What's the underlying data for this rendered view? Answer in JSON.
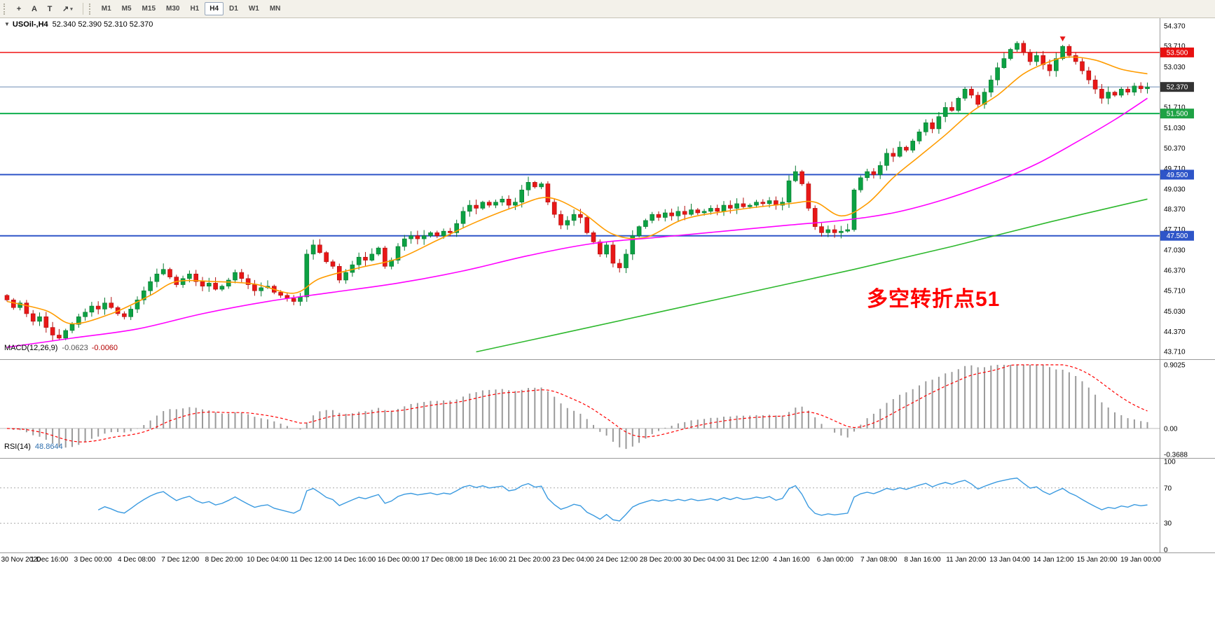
{
  "toolbar": {
    "tools": [
      {
        "id": "crosshair",
        "glyph": "+"
      },
      {
        "id": "text-annotation",
        "glyph": "A"
      },
      {
        "id": "text-label",
        "glyph": "T"
      },
      {
        "id": "arrow-objects",
        "glyph": "↗",
        "caret": "▾"
      }
    ],
    "timeframes": [
      "M1",
      "M5",
      "M15",
      "M30",
      "H1",
      "H4",
      "D1",
      "W1",
      "MN"
    ],
    "active_timeframe": "H4"
  },
  "chart_data": {
    "type": "candlestick",
    "symbol": "USOil-,H4",
    "collapse_icon": "▼",
    "ohlc_display": "52.340 52.390 52.310 52.370",
    "current_price": "52.370",
    "y_axis_labels": [
      "54.370",
      "53.710",
      "53.030",
      "52.370",
      "51.710",
      "51.030",
      "50.370",
      "49.710",
      "49.030",
      "48.370",
      "47.710",
      "47.030",
      "46.370",
      "45.710",
      "45.030",
      "44.370",
      "43.710"
    ],
    "horizontal_lines": [
      {
        "price": 53.5,
        "color": "#f01414",
        "width": 1.5,
        "badge": "53.500",
        "badge_bg": "#e81010"
      },
      {
        "price": 52.37,
        "color": "#6e8cb4",
        "width": 1,
        "badge": "52.370",
        "badge_bg": "#333333"
      },
      {
        "price": 51.5,
        "color": "#0faf4e",
        "width": 2,
        "badge": "51.500",
        "badge_bg": "#1ea244"
      },
      {
        "price": 49.5,
        "color": "#2e55c8",
        "width": 2,
        "badge": "49.500",
        "badge_bg": "#2e55c8"
      },
      {
        "price": 47.5,
        "color": "#2e55c8",
        "width": 2,
        "badge": "47.500",
        "badge_bg": "#2e55c8"
      }
    ],
    "candles": {
      "first_open": 45.55,
      "up_color": "#0ca143",
      "up_border": "#077a30",
      "down_color": "#e81717",
      "down_border": "#b00f0f",
      "closes": [
        45.4,
        45.15,
        45.3,
        44.95,
        44.7,
        44.85,
        44.5,
        44.25,
        44.15,
        44.4,
        44.6,
        44.85,
        45.0,
        45.2,
        45.1,
        45.3,
        45.15,
        44.95,
        44.85,
        45.1,
        45.4,
        45.7,
        46.0,
        46.25,
        46.4,
        46.15,
        45.9,
        46.1,
        46.25,
        46.0,
        45.85,
        45.95,
        45.75,
        45.85,
        46.05,
        46.3,
        46.1,
        45.9,
        45.7,
        45.8,
        45.85,
        45.65,
        45.55,
        45.45,
        45.35,
        45.5,
        46.9,
        47.2,
        46.95,
        46.65,
        46.5,
        46.05,
        46.3,
        46.55,
        46.8,
        46.7,
        46.9,
        47.1,
        46.5,
        46.7,
        47.15,
        47.4,
        47.5,
        47.4,
        47.5,
        47.6,
        47.5,
        47.65,
        47.6,
        47.9,
        48.3,
        48.5,
        48.4,
        48.6,
        48.5,
        48.6,
        48.7,
        48.5,
        48.6,
        49.0,
        49.25,
        49.1,
        49.2,
        48.6,
        48.2,
        47.85,
        48.0,
        48.2,
        48.1,
        47.6,
        47.3,
        46.9,
        47.2,
        46.6,
        46.45,
        46.9,
        47.5,
        47.8,
        48.0,
        48.2,
        48.1,
        48.25,
        48.15,
        48.3,
        48.2,
        48.35,
        48.25,
        48.3,
        48.4,
        48.3,
        48.5,
        48.4,
        48.55,
        48.45,
        48.5,
        48.6,
        48.55,
        48.65,
        48.5,
        48.6,
        49.3,
        49.6,
        49.2,
        48.4,
        47.8,
        47.6,
        47.7,
        47.6,
        47.65,
        47.7,
        49.0,
        49.4,
        49.6,
        49.5,
        49.8,
        50.2,
        50.1,
        50.4,
        50.3,
        50.6,
        50.9,
        51.2,
        51.0,
        51.4,
        51.7,
        51.6,
        52.0,
        52.3,
        52.1,
        51.8,
        52.2,
        52.6,
        53.0,
        53.3,
        53.6,
        53.8,
        53.5,
        53.2,
        53.4,
        53.1,
        52.9,
        53.3,
        53.7,
        53.4,
        53.2,
        52.9,
        52.6,
        52.3,
        52.0,
        52.2,
        52.1,
        52.3,
        52.2,
        52.4,
        52.31,
        52.37
      ]
    },
    "moving_averages": [
      {
        "name": "fast-ma",
        "color": "#ff9c00",
        "width": 1.6,
        "points": [
          [
            0,
            45.35
          ],
          [
            6,
            45.05
          ],
          [
            10,
            44.62
          ],
          [
            16,
            44.95
          ],
          [
            22,
            45.55
          ],
          [
            26,
            46.0
          ],
          [
            32,
            46.0
          ],
          [
            38,
            45.92
          ],
          [
            44,
            45.62
          ],
          [
            48,
            46.1
          ],
          [
            54,
            46.45
          ],
          [
            60,
            46.75
          ],
          [
            66,
            47.35
          ],
          [
            72,
            47.95
          ],
          [
            78,
            48.45
          ],
          [
            83,
            48.75
          ],
          [
            88,
            48.3
          ],
          [
            93,
            47.55
          ],
          [
            98,
            47.45
          ],
          [
            104,
            48.05
          ],
          [
            112,
            48.35
          ],
          [
            120,
            48.55
          ],
          [
            124,
            48.6
          ],
          [
            128,
            48.15
          ],
          [
            132,
            48.55
          ],
          [
            136,
            49.4
          ],
          [
            140,
            50.1
          ],
          [
            144,
            50.8
          ],
          [
            148,
            51.55
          ],
          [
            152,
            52.1
          ],
          [
            156,
            52.8
          ],
          [
            160,
            53.2
          ],
          [
            163,
            53.35
          ],
          [
            167,
            53.25
          ],
          [
            171,
            52.95
          ],
          [
            175,
            52.8
          ]
        ]
      },
      {
        "name": "mid-ma",
        "color": "#ff00ff",
        "width": 1.6,
        "points": [
          [
            0,
            43.85
          ],
          [
            10,
            44.15
          ],
          [
            20,
            44.45
          ],
          [
            30,
            44.95
          ],
          [
            40,
            45.35
          ],
          [
            50,
            45.65
          ],
          [
            60,
            45.95
          ],
          [
            70,
            46.35
          ],
          [
            80,
            46.85
          ],
          [
            90,
            47.25
          ],
          [
            100,
            47.45
          ],
          [
            110,
            47.65
          ],
          [
            120,
            47.85
          ],
          [
            128,
            48.0
          ],
          [
            136,
            48.25
          ],
          [
            144,
            48.7
          ],
          [
            152,
            49.3
          ],
          [
            158,
            49.85
          ],
          [
            164,
            50.55
          ],
          [
            170,
            51.3
          ],
          [
            175,
            52.0
          ]
        ]
      },
      {
        "name": "slow-ma",
        "color": "#2db82d",
        "width": 1.6,
        "points": [
          [
            72,
            43.7
          ],
          [
            85,
            44.3
          ],
          [
            100,
            45.0
          ],
          [
            115,
            45.7
          ],
          [
            130,
            46.4
          ],
          [
            145,
            47.15
          ],
          [
            160,
            47.95
          ],
          [
            175,
            48.7
          ]
        ]
      }
    ],
    "marker": {
      "index": 162,
      "price": 54.02,
      "type": "sell-arrow",
      "color": "#e81717"
    },
    "annotation": {
      "text": "多空转折点51",
      "color": "#ff0000"
    },
    "macd": {
      "name": "MACD(12,26,9)",
      "value_main": "-0.0623",
      "value_signal": "-0.0060",
      "params": {
        "fast": 12,
        "slow": 26,
        "signal": 9
      },
      "axis_labels": [
        "0.9025",
        "0.00",
        "-0.3688"
      ],
      "range": {
        "max": 0.9025,
        "min": -0.3688
      },
      "histogram_color": "#9a9a9a",
      "signal_color": "#ff0000"
    },
    "rsi": {
      "name": "RSI(14)",
      "value": "48.8644",
      "period": 14,
      "axis_labels": [
        "100",
        "70",
        "30",
        "0"
      ],
      "levels": [
        70,
        30
      ],
      "line_color": "#3a9ae0"
    },
    "time_axis_labels": [
      "30 Nov 2020",
      "1 Dec 16:00",
      "3 Dec 00:00",
      "4 Dec 08:00",
      "7 Dec 12:00",
      "8 Dec 20:00",
      "10 Dec 04:00",
      "11 Dec 12:00",
      "14 Dec 16:00",
      "16 Dec 00:00",
      "17 Dec 08:00",
      "18 Dec 16:00",
      "21 Dec 20:00",
      "23 Dec 04:00",
      "24 Dec 12:00",
      "28 Dec 20:00",
      "30 Dec 04:00",
      "31 Dec 12:00",
      "4 Jan 16:00",
      "6 Jan 00:00",
      "7 Jan 08:00",
      "8 Jan 16:00",
      "11 Jan 20:00",
      "13 Jan 04:00",
      "14 Jan 12:00",
      "15 Jan 20:00",
      "19 Jan 00:00"
    ]
  }
}
